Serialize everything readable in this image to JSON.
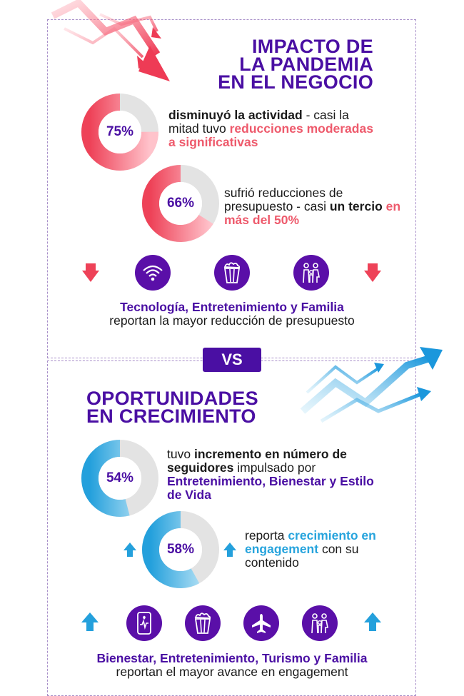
{
  "section_top": {
    "title_lines": [
      "IMPACTO DE",
      "LA PANDEMIA",
      "EN EL NEGOCIO"
    ],
    "stat1": {
      "value": 0.75,
      "label": "75%",
      "text_bold": "disminuyó la actividad",
      "text_normal": " - casi la mitad tuvo ",
      "text_highlight": "reducciones moderadas a significativas"
    },
    "stat2": {
      "value": 0.66,
      "label": "66%",
      "text_normal": "sufrió reducciones de presupuesto - casi ",
      "text_bold": "un tercio",
      "text_highlight": "en más del 50%"
    },
    "icons": [
      "wifi-icon",
      "popcorn-icon",
      "family-icon"
    ],
    "caption_bold": "Tecnología, Entretenimiento y Familia",
    "caption_normal": "reportan la mayor reducción de presupuesto"
  },
  "vs_label": "VS",
  "section_bottom": {
    "title_lines": [
      "OPORTUNIDADES",
      "EN CRECIMIENTO"
    ],
    "stat1": {
      "value": 0.54,
      "label": "54%",
      "text_normal": "tuvo ",
      "text_bold": "incremento en número de seguidores",
      "text_normal2": " impulsado por ",
      "text_highlight": "Entretenimiento, Bienestar y Estilo de Vida"
    },
    "stat2": {
      "value": 0.58,
      "label": "58%",
      "text_normal": "reporta ",
      "text_highlight": "crecimiento en engagement",
      "text_normal2": " con su contenido"
    },
    "icons": [
      "phone-health-icon",
      "popcorn-icon",
      "airplane-icon",
      "family-icon"
    ],
    "caption_bold": "Bienestar, Entretenimiento, Turismo y Familia",
    "caption_normal": "reportan el mayor avance en engagement"
  },
  "colors": {
    "purple": "#4a0fa3",
    "pink": "#ee5a6c",
    "blue": "#27a4dd",
    "grey": "#e3e3e3"
  }
}
